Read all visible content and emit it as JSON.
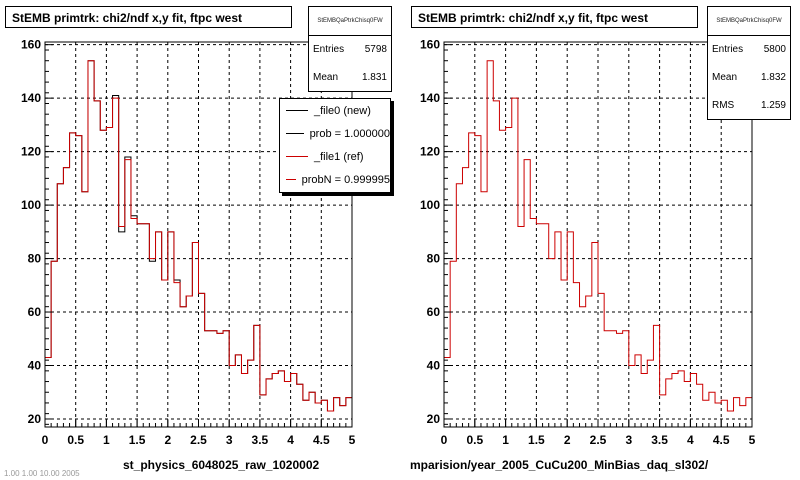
{
  "panels": [
    {
      "title": "StEMB primtrk: chi2/ndf x,y fit, ftpc west",
      "stats": {
        "name": "StEMBQaPtrkChisq0FW",
        "rows": [
          {
            "label": "Entries",
            "value": "5798"
          },
          {
            "label": "Mean",
            "value": "1.831"
          }
        ]
      },
      "legend": {
        "entries": [
          {
            "label": "_file0 (new)",
            "color": "#000000"
          },
          {
            "label": "prob = 1.000000",
            "color": "#000000"
          },
          {
            "label": "_file1 (ref)",
            "color": "#cc0000"
          },
          {
            "label": "probN = 0.999995",
            "color": "#cc0000"
          }
        ]
      },
      "footer": "st_physics_6048025_raw_1020002"
    },
    {
      "title": "StEMB primtrk: chi2/ndf x,y fit, ftpc west",
      "stats": {
        "name": "StEMBQaPtrkChisq0FW",
        "rows": [
          {
            "label": "Entries",
            "value": "5800"
          },
          {
            "label": "Mean",
            "value": "1.832"
          },
          {
            "label": "RMS",
            "value": "1.259"
          }
        ]
      },
      "footer": "mparision/year_2005_CuCu200_MinBias_daq_sl302/"
    }
  ],
  "corner_text": "1.00 1.00 10.00 2005",
  "chart_data": [
    {
      "type": "histogram",
      "title": "StEMB primtrk: chi2/ndf x,y fit, ftpc west",
      "xlim": [
        0,
        5
      ],
      "ylim": [
        17,
        161
      ],
      "xticks": [
        "0",
        "0.5",
        "1",
        "1.5",
        "2",
        "2.5",
        "3",
        "3.5",
        "4",
        "4.5",
        "5"
      ],
      "yticks": [
        "20",
        "40",
        "60",
        "80",
        "100",
        "120",
        "140",
        "160"
      ],
      "grid": true,
      "bin_width": 0.1,
      "series": [
        {
          "name": "_file0 (new)",
          "color": "#000000",
          "values": [
            43,
            79,
            108,
            114,
            127,
            126,
            105,
            154,
            139,
            128,
            129,
            141,
            90,
            118,
            96,
            93,
            93,
            79,
            90,
            72,
            90,
            72,
            62,
            66,
            86,
            67,
            53,
            53,
            52,
            53,
            40,
            44,
            37,
            42,
            55,
            29,
            35,
            37,
            38,
            34,
            37,
            33,
            27,
            30,
            26,
            27,
            23,
            28,
            25,
            28
          ]
        },
        {
          "name": "_file1 (ref)",
          "color": "#cc0000",
          "values": [
            43,
            79,
            108,
            114,
            127,
            126,
            105,
            154,
            139,
            128,
            129,
            140,
            92,
            117,
            95,
            93,
            93,
            80,
            90,
            72,
            90,
            71,
            62,
            66,
            86,
            67,
            53,
            53,
            52,
            53,
            40,
            44,
            37,
            42,
            55,
            29,
            35,
            37,
            38,
            34,
            37,
            33,
            27,
            30,
            26,
            27,
            23,
            28,
            25,
            28
          ]
        }
      ]
    },
    {
      "type": "histogram",
      "title": "StEMB primtrk: chi2/ndf x,y fit, ftpc west",
      "xlim": [
        0,
        5
      ],
      "ylim": [
        17,
        161
      ],
      "xticks": [
        "0",
        "0.5",
        "1",
        "1.5",
        "2",
        "2.5",
        "3",
        "3.5",
        "4",
        "4.5",
        "5"
      ],
      "yticks": [
        "20",
        "40",
        "60",
        "80",
        "100",
        "120",
        "140",
        "160"
      ],
      "grid": true,
      "bin_width": 0.1,
      "series": [
        {
          "color": "#cc0000",
          "values": [
            43,
            79,
            108,
            114,
            127,
            126,
            105,
            154,
            139,
            128,
            129,
            140,
            92,
            117,
            95,
            93,
            93,
            80,
            90,
            72,
            90,
            71,
            62,
            66,
            86,
            67,
            53,
            53,
            52,
            53,
            40,
            44,
            37,
            42,
            55,
            29,
            35,
            37,
            38,
            34,
            37,
            33,
            27,
            30,
            26,
            27,
            23,
            28,
            25,
            28
          ]
        }
      ]
    }
  ]
}
